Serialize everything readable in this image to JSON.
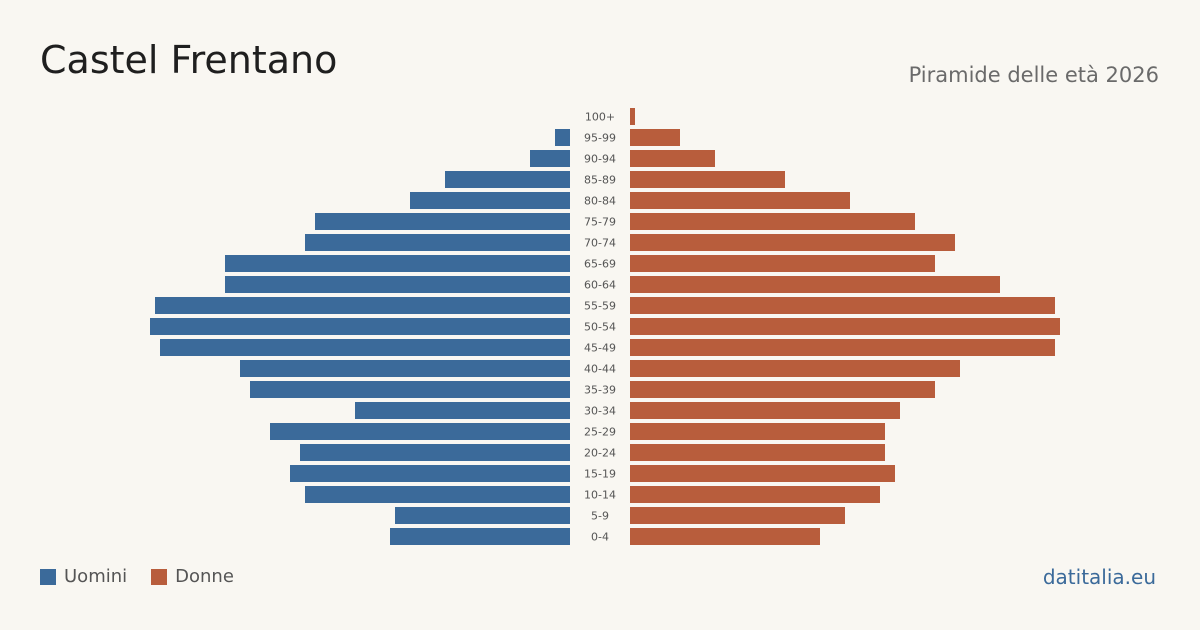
{
  "header": {
    "title": "Castel Frentano",
    "subtitle": "Piramide delle età 2026"
  },
  "legend": {
    "men_label": "Uomini",
    "women_label": "Donne"
  },
  "footer": {
    "source": "datitalia.eu"
  },
  "colors": {
    "men": "#3b6a9a",
    "women": "#b85d3c",
    "background": "#f9f7f2",
    "age_label": "#555555"
  },
  "chart_data": {
    "type": "bar",
    "orientation": "horizontal-population-pyramid",
    "title": "Castel Frentano",
    "subtitle": "Piramide delle età 2026",
    "categories": [
      "100+",
      "95-99",
      "90-94",
      "85-89",
      "80-84",
      "75-79",
      "70-74",
      "65-69",
      "60-64",
      "55-59",
      "50-54",
      "45-49",
      "40-44",
      "35-39",
      "30-34",
      "25-29",
      "20-24",
      "15-19",
      "10-14",
      "5-9",
      "0-4"
    ],
    "series": [
      {
        "name": "Uomini",
        "values": [
          0,
          3,
          8,
          25,
          32,
          51,
          53,
          69,
          69,
          83,
          84,
          82,
          66,
          64,
          43,
          60,
          54,
          56,
          53,
          35,
          36
        ]
      },
      {
        "name": "Donne",
        "values": [
          1,
          10,
          17,
          31,
          44,
          57,
          65,
          61,
          74,
          85,
          86,
          85,
          66,
          61,
          54,
          51,
          51,
          53,
          50,
          43,
          38
        ]
      }
    ],
    "value_max": 86,
    "grid": false,
    "legend_position": "bottom-left"
  }
}
